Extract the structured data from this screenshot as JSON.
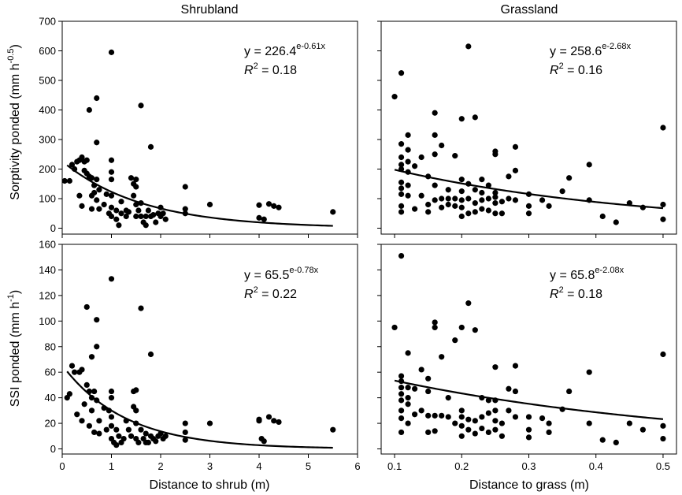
{
  "colors": {
    "ink": "#000000",
    "background": "#ffffff"
  },
  "chart_data": [
    {
      "id": "shrub-sorptivity",
      "type": "scatter",
      "title": "Shrubland",
      "xlabel": "",
      "ylabel": "Sorptivity ponded (mm h-0.5)",
      "ylabel_main": "Sorptivity ponded (mm h",
      "ylabel_sup": "-0.5",
      "ylabel_tail": ")",
      "xlim": [
        0,
        6
      ],
      "ylim": [
        -20,
        700
      ],
      "xticks": [
        0,
        1,
        2,
        3,
        4,
        5,
        6
      ],
      "yticks": [
        0,
        100,
        200,
        300,
        400,
        500,
        600,
        700
      ],
      "show_xtick_labels": false,
      "equation": {
        "prefix": "y = 226.4",
        "exponent": "e-0.61x",
        "r2_label": "R",
        "r2_sup": "2",
        "r2_value": " = 0.18"
      },
      "fit": {
        "a": 226.4,
        "b": -0.61,
        "x_range": [
          0.1,
          5.5
        ]
      },
      "points": [
        [
          0.05,
          160
        ],
        [
          0.15,
          160
        ],
        [
          0.2,
          215
        ],
        [
          0.25,
          200
        ],
        [
          0.3,
          225
        ],
        [
          0.35,
          110
        ],
        [
          0.35,
          230
        ],
        [
          0.4,
          75
        ],
        [
          0.4,
          240
        ],
        [
          0.45,
          195
        ],
        [
          0.45,
          225
        ],
        [
          0.5,
          185
        ],
        [
          0.5,
          230
        ],
        [
          0.55,
          400
        ],
        [
          0.55,
          175
        ],
        [
          0.6,
          170
        ],
        [
          0.6,
          110
        ],
        [
          0.6,
          65
        ],
        [
          0.65,
          145
        ],
        [
          0.65,
          120
        ],
        [
          0.7,
          290
        ],
        [
          0.7,
          440
        ],
        [
          0.7,
          165
        ],
        [
          0.7,
          95
        ],
        [
          0.75,
          130
        ],
        [
          0.75,
          65
        ],
        [
          0.85,
          80
        ],
        [
          0.9,
          115
        ],
        [
          0.95,
          50
        ],
        [
          1.0,
          595
        ],
        [
          1.0,
          230
        ],
        [
          1.0,
          190
        ],
        [
          1.0,
          165
        ],
        [
          1.0,
          110
        ],
        [
          1.0,
          70
        ],
        [
          1.0,
          40
        ],
        [
          1.1,
          60
        ],
        [
          1.1,
          30
        ],
        [
          1.15,
          10
        ],
        [
          1.2,
          90
        ],
        [
          1.2,
          50
        ],
        [
          1.3,
          60
        ],
        [
          1.3,
          40
        ],
        [
          1.35,
          55
        ],
        [
          1.4,
          170
        ],
        [
          1.45,
          150
        ],
        [
          1.45,
          110
        ],
        [
          1.5,
          165
        ],
        [
          1.5,
          140
        ],
        [
          1.5,
          80
        ],
        [
          1.5,
          40
        ],
        [
          1.55,
          60
        ],
        [
          1.6,
          415
        ],
        [
          1.6,
          85
        ],
        [
          1.6,
          40
        ],
        [
          1.65,
          20
        ],
        [
          1.7,
          40
        ],
        [
          1.7,
          10
        ],
        [
          1.75,
          60
        ],
        [
          1.8,
          275
        ],
        [
          1.8,
          40
        ],
        [
          1.85,
          45
        ],
        [
          1.9,
          20
        ],
        [
          1.95,
          50
        ],
        [
          2.0,
          70
        ],
        [
          2.0,
          40
        ],
        [
          2.05,
          50
        ],
        [
          2.1,
          30
        ],
        [
          2.5,
          140
        ],
        [
          2.5,
          65
        ],
        [
          2.5,
          50
        ],
        [
          3.0,
          80
        ],
        [
          4.0,
          78
        ],
        [
          4.0,
          35
        ],
        [
          4.1,
          30
        ],
        [
          4.2,
          82
        ],
        [
          4.3,
          75
        ],
        [
          4.4,
          70
        ],
        [
          5.5,
          55
        ]
      ]
    },
    {
      "id": "grass-sorptivity",
      "type": "scatter",
      "title": "Grassland",
      "xlabel": "",
      "ylabel": "",
      "xlim": [
        0.08,
        0.52
      ],
      "ylim": [
        -20,
        700
      ],
      "xticks": [
        0.1,
        0.2,
        0.3,
        0.4,
        0.5
      ],
      "yticks": [
        0,
        100,
        200,
        300,
        400,
        500,
        600,
        700
      ],
      "show_xtick_labels": false,
      "equation": {
        "prefix": "y = 258.6",
        "exponent": "e-2.68x",
        "r2_label": "R",
        "r2_sup": "2",
        "r2_value": " = 0.16"
      },
      "fit": {
        "a": 258.6,
        "b": -2.68,
        "x_range": [
          0.1,
          0.5
        ]
      },
      "points": [
        [
          0.1,
          445
        ],
        [
          0.11,
          525
        ],
        [
          0.11,
          285
        ],
        [
          0.11,
          240
        ],
        [
          0.11,
          215
        ],
        [
          0.11,
          200
        ],
        [
          0.11,
          155
        ],
        [
          0.11,
          135
        ],
        [
          0.11,
          115
        ],
        [
          0.11,
          75
        ],
        [
          0.11,
          55
        ],
        [
          0.12,
          315
        ],
        [
          0.12,
          265
        ],
        [
          0.12,
          225
        ],
        [
          0.12,
          190
        ],
        [
          0.12,
          145
        ],
        [
          0.12,
          110
        ],
        [
          0.13,
          210
        ],
        [
          0.13,
          65
        ],
        [
          0.14,
          240
        ],
        [
          0.14,
          110
        ],
        [
          0.15,
          175
        ],
        [
          0.15,
          80
        ],
        [
          0.15,
          55
        ],
        [
          0.16,
          390
        ],
        [
          0.16,
          315
        ],
        [
          0.16,
          250
        ],
        [
          0.16,
          145
        ],
        [
          0.16,
          95
        ],
        [
          0.17,
          280
        ],
        [
          0.17,
          100
        ],
        [
          0.17,
          70
        ],
        [
          0.18,
          130
        ],
        [
          0.18,
          100
        ],
        [
          0.18,
          80
        ],
        [
          0.19,
          245
        ],
        [
          0.19,
          100
        ],
        [
          0.19,
          75
        ],
        [
          0.2,
          370
        ],
        [
          0.2,
          165
        ],
        [
          0.2,
          125
        ],
        [
          0.2,
          95
        ],
        [
          0.2,
          70
        ],
        [
          0.2,
          40
        ],
        [
          0.21,
          615
        ],
        [
          0.21,
          150
        ],
        [
          0.21,
          100
        ],
        [
          0.21,
          50
        ],
        [
          0.22,
          375
        ],
        [
          0.22,
          130
        ],
        [
          0.22,
          85
        ],
        [
          0.22,
          55
        ],
        [
          0.23,
          165
        ],
        [
          0.23,
          120
        ],
        [
          0.23,
          95
        ],
        [
          0.23,
          65
        ],
        [
          0.24,
          145
        ],
        [
          0.24,
          100
        ],
        [
          0.24,
          60
        ],
        [
          0.25,
          260
        ],
        [
          0.25,
          250
        ],
        [
          0.25,
          120
        ],
        [
          0.25,
          105
        ],
        [
          0.25,
          85
        ],
        [
          0.25,
          50
        ],
        [
          0.26,
          90
        ],
        [
          0.26,
          50
        ],
        [
          0.27,
          175
        ],
        [
          0.27,
          100
        ],
        [
          0.28,
          275
        ],
        [
          0.28,
          195
        ],
        [
          0.28,
          95
        ],
        [
          0.3,
          115
        ],
        [
          0.3,
          75
        ],
        [
          0.3,
          50
        ],
        [
          0.32,
          95
        ],
        [
          0.33,
          75
        ],
        [
          0.35,
          125
        ],
        [
          0.36,
          170
        ],
        [
          0.39,
          215
        ],
        [
          0.39,
          95
        ],
        [
          0.41,
          40
        ],
        [
          0.43,
          20
        ],
        [
          0.45,
          85
        ],
        [
          0.47,
          70
        ],
        [
          0.5,
          340
        ],
        [
          0.5,
          80
        ],
        [
          0.5,
          30
        ]
      ]
    },
    {
      "id": "shrub-ssi",
      "type": "scatter",
      "title": "",
      "xlabel": "Distance to shrub (m)",
      "ylabel": "SSI ponded (mm h-1)",
      "ylabel_main": "SSI ponded (mm h",
      "ylabel_sup": "-1",
      "ylabel_tail": ")",
      "xlim": [
        0,
        6
      ],
      "ylim": [
        -4,
        160
      ],
      "xticks": [
        0,
        1,
        2,
        3,
        4,
        5,
        6
      ],
      "yticks": [
        0,
        20,
        40,
        60,
        80,
        100,
        120,
        140,
        160
      ],
      "show_xtick_labels": true,
      "equation": {
        "prefix": "y = 65.5",
        "exponent": "e-0.78x",
        "r2_label": "R",
        "r2_sup": "2",
        "r2_value": " = 0.22"
      },
      "fit": {
        "a": 65.5,
        "b": -0.78,
        "x_range": [
          0.1,
          5.5
        ]
      },
      "points": [
        [
          0.1,
          40
        ],
        [
          0.15,
          43
        ],
        [
          0.2,
          65
        ],
        [
          0.25,
          60
        ],
        [
          0.3,
          27
        ],
        [
          0.35,
          60
        ],
        [
          0.4,
          62
        ],
        [
          0.4,
          22
        ],
        [
          0.45,
          35
        ],
        [
          0.5,
          111
        ],
        [
          0.5,
          50
        ],
        [
          0.55,
          45
        ],
        [
          0.55,
          18
        ],
        [
          0.6,
          72
        ],
        [
          0.6,
          40
        ],
        [
          0.6,
          30
        ],
        [
          0.65,
          45
        ],
        [
          0.65,
          13
        ],
        [
          0.7,
          101
        ],
        [
          0.7,
          80
        ],
        [
          0.7,
          38
        ],
        [
          0.75,
          22
        ],
        [
          0.75,
          12
        ],
        [
          0.85,
          32
        ],
        [
          0.9,
          15
        ],
        [
          0.95,
          30
        ],
        [
          1.0,
          133
        ],
        [
          1.0,
          45
        ],
        [
          1.0,
          40
        ],
        [
          1.0,
          25
        ],
        [
          1.0,
          18
        ],
        [
          1.0,
          8
        ],
        [
          1.05,
          5
        ],
        [
          1.1,
          3
        ],
        [
          1.1,
          15
        ],
        [
          1.15,
          10
        ],
        [
          1.2,
          5
        ],
        [
          1.25,
          8
        ],
        [
          1.3,
          22
        ],
        [
          1.35,
          15
        ],
        [
          1.4,
          10
        ],
        [
          1.45,
          45
        ],
        [
          1.45,
          33
        ],
        [
          1.5,
          46
        ],
        [
          1.5,
          30
        ],
        [
          1.5,
          20
        ],
        [
          1.5,
          8
        ],
        [
          1.55,
          5
        ],
        [
          1.6,
          110
        ],
        [
          1.6,
          15
        ],
        [
          1.65,
          8
        ],
        [
          1.7,
          5
        ],
        [
          1.7,
          12
        ],
        [
          1.75,
          5
        ],
        [
          1.8,
          74
        ],
        [
          1.8,
          10
        ],
        [
          1.85,
          8
        ],
        [
          1.9,
          6
        ],
        [
          1.95,
          10
        ],
        [
          2.0,
          12
        ],
        [
          2.05,
          8
        ],
        [
          2.1,
          10
        ],
        [
          2.5,
          20
        ],
        [
          2.5,
          13
        ],
        [
          2.5,
          7
        ],
        [
          3.0,
          20
        ],
        [
          4.0,
          22
        ],
        [
          4.0,
          23
        ],
        [
          4.05,
          8
        ],
        [
          4.1,
          6
        ],
        [
          4.2,
          25
        ],
        [
          4.3,
          22
        ],
        [
          4.4,
          21
        ],
        [
          5.5,
          15
        ]
      ]
    },
    {
      "id": "grass-ssi",
      "type": "scatter",
      "title": "",
      "xlabel": "Distance to grass (m)",
      "ylabel": "",
      "xlim": [
        0.08,
        0.52
      ],
      "ylim": [
        -4,
        160
      ],
      "xticks": [
        0.1,
        0.2,
        0.3,
        0.4,
        0.5
      ],
      "yticks": [
        0,
        20,
        40,
        60,
        80,
        100,
        120,
        140,
        160
      ],
      "show_xtick_labels": true,
      "equation": {
        "prefix": "y = 65.8",
        "exponent": "e-2.08x",
        "r2_label": "R",
        "r2_sup": "2",
        "r2_value": " = 0.18"
      },
      "fit": {
        "a": 65.8,
        "b": -2.08,
        "x_range": [
          0.1,
          0.5
        ]
      },
      "points": [
        [
          0.1,
          95
        ],
        [
          0.11,
          151
        ],
        [
          0.11,
          57
        ],
        [
          0.11,
          53
        ],
        [
          0.11,
          48
        ],
        [
          0.11,
          43
        ],
        [
          0.11,
          38
        ],
        [
          0.11,
          30
        ],
        [
          0.11,
          24
        ],
        [
          0.11,
          13
        ],
        [
          0.12,
          75
        ],
        [
          0.12,
          48
        ],
        [
          0.12,
          40
        ],
        [
          0.12,
          35
        ],
        [
          0.12,
          20
        ],
        [
          0.13,
          47
        ],
        [
          0.13,
          27
        ],
        [
          0.14,
          62
        ],
        [
          0.14,
          30
        ],
        [
          0.15,
          55
        ],
        [
          0.15,
          45
        ],
        [
          0.15,
          26
        ],
        [
          0.15,
          13
        ],
        [
          0.16,
          99
        ],
        [
          0.16,
          95
        ],
        [
          0.16,
          26
        ],
        [
          0.16,
          14
        ],
        [
          0.17,
          72
        ],
        [
          0.17,
          26
        ],
        [
          0.18,
          40
        ],
        [
          0.18,
          25
        ],
        [
          0.19,
          85
        ],
        [
          0.19,
          20
        ],
        [
          0.2,
          95
        ],
        [
          0.2,
          30
        ],
        [
          0.2,
          25
        ],
        [
          0.2,
          18
        ],
        [
          0.2,
          10
        ],
        [
          0.21,
          114
        ],
        [
          0.21,
          23
        ],
        [
          0.21,
          15
        ],
        [
          0.22,
          93
        ],
        [
          0.22,
          22
        ],
        [
          0.22,
          12
        ],
        [
          0.23,
          40
        ],
        [
          0.23,
          25
        ],
        [
          0.23,
          16
        ],
        [
          0.24,
          38
        ],
        [
          0.24,
          28
        ],
        [
          0.24,
          13
        ],
        [
          0.25,
          64
        ],
        [
          0.25,
          38
        ],
        [
          0.25,
          30
        ],
        [
          0.25,
          22
        ],
        [
          0.25,
          15
        ],
        [
          0.26,
          20
        ],
        [
          0.26,
          10
        ],
        [
          0.27,
          47
        ],
        [
          0.27,
          30
        ],
        [
          0.28,
          65
        ],
        [
          0.28,
          45
        ],
        [
          0.28,
          25
        ],
        [
          0.3,
          25
        ],
        [
          0.3,
          15
        ],
        [
          0.3,
          9
        ],
        [
          0.32,
          24
        ],
        [
          0.33,
          20
        ],
        [
          0.33,
          13
        ],
        [
          0.35,
          31
        ],
        [
          0.36,
          45
        ],
        [
          0.39,
          60
        ],
        [
          0.39,
          20
        ],
        [
          0.41,
          7
        ],
        [
          0.43,
          5
        ],
        [
          0.45,
          20
        ],
        [
          0.47,
          15
        ],
        [
          0.5,
          74
        ],
        [
          0.5,
          18
        ],
        [
          0.5,
          8
        ]
      ]
    }
  ]
}
